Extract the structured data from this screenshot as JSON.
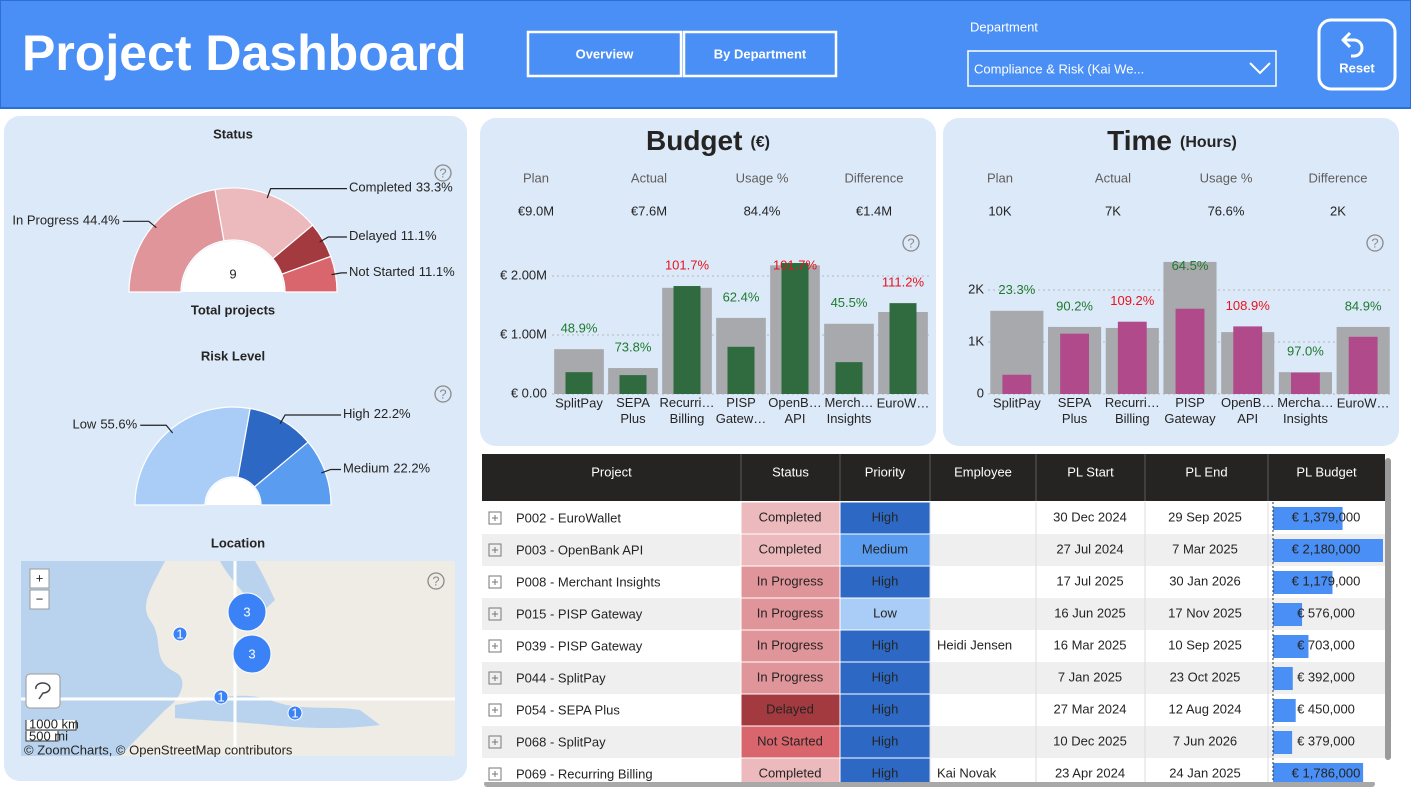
{
  "header": {
    "title": "Project Dashboard",
    "nav": [
      "Overview",
      "By Department"
    ],
    "filter_label": "Department",
    "filter_value": "Compliance & Risk (Kai We...",
    "reset": "Reset"
  },
  "help_icon": "?",
  "chart_data": [
    {
      "type": "donut",
      "title": "Status",
      "categories": [
        "In Progress",
        "Completed",
        "Delayed",
        "Not Started"
      ],
      "values": [
        44.4,
        33.3,
        11.1,
        11.1
      ],
      "value_labels": [
        "44.4%",
        "33.3%",
        "11.1%",
        "11.1%"
      ],
      "colors": [
        "#e0959a",
        "#ecb9bc",
        "#a33a3f",
        "#d9666d"
      ],
      "center_value": 9,
      "center_label": "Total projects"
    },
    {
      "type": "donut",
      "title": "Risk Level",
      "categories": [
        "Low",
        "High",
        "Medium"
      ],
      "values": [
        55.6,
        22.2,
        22.2
      ],
      "value_labels": [
        "55.6%",
        "22.2%",
        "22.2%"
      ],
      "colors": [
        "#a9cdf7",
        "#2d68c4",
        "#5a9cf0"
      ]
    },
    {
      "type": "bar",
      "title": "Budget",
      "subtitle": "(€)",
      "kpis": [
        {
          "label": "Plan",
          "value": "€9.0M"
        },
        {
          "label": "Actual",
          "value": "€7.6M"
        },
        {
          "label": "Usage %",
          "value": "84.4%"
        },
        {
          "label": "Difference",
          "value": "€1.4M"
        }
      ],
      "categories": [
        "SplitPay",
        "SEPA Plus",
        "Recurri… Billing",
        "PISP Gatew…",
        "OpenB… API",
        "Merch… Insights",
        "EuroW…"
      ],
      "series": [
        {
          "color": "#a7a9ac",
          "values": [
            760000,
            440000,
            1800000,
            1290000,
            2180000,
            1190000,
            1390000
          ]
        },
        {
          "color": "#2f6b3e",
          "values": [
            370000,
            320000,
            1830000,
            800000,
            2220000,
            540000,
            1540000
          ]
        }
      ],
      "usage": {
        "values": [
          48.9,
          73.8,
          101.7,
          62.4,
          101.7,
          45.5,
          111.2
        ],
        "value_labels": [
          "48.9%",
          "73.8%",
          "101.7%",
          "62.4%",
          "101.7%",
          "45.5%",
          "111.2%"
        ],
        "colors": [
          "#1e7a2e",
          "#1e7a2e",
          "#e8131b",
          "#1e7a2e",
          "#e8131b",
          "#1e7a2e",
          "#e8131b"
        ]
      },
      "ylim": [
        0,
        2300000
      ],
      "yticks": [
        {
          "value": 0,
          "label": "€ 0.00"
        },
        {
          "value": 1000000,
          "label": "€ 1.00M"
        },
        {
          "value": 2000000,
          "label": "€ 2.00M"
        }
      ],
      "grid": true
    },
    {
      "type": "bar",
      "title": "Time",
      "subtitle": "(Hours)",
      "kpis": [
        {
          "label": "Plan",
          "value": "10K"
        },
        {
          "label": "Actual",
          "value": "7K"
        },
        {
          "label": "Usage %",
          "value": "76.6%"
        },
        {
          "label": "Difference",
          "value": "2K"
        }
      ],
      "categories": [
        "SplitPay",
        "SEPA Plus",
        "Recurri… Billing",
        "PISP Gateway",
        "OpenB… API",
        "Mercha… Insights",
        "EuroW…"
      ],
      "series": [
        {
          "color": "#a7a9ac",
          "values": [
            1.6,
            1.29,
            1.27,
            2.54,
            1.19,
            0.42,
            1.29
          ]
        },
        {
          "color": "#b04a8a",
          "values": [
            0.37,
            1.16,
            1.39,
            1.64,
            1.3,
            0.41,
            1.1
          ]
        }
      ],
      "usage": {
        "values": [
          23.3,
          90.2,
          109.2,
          64.5,
          108.9,
          97.0,
          84.9
        ],
        "value_labels": [
          "23.3%",
          "90.2%",
          "109.2%",
          "64.5%",
          "108.9%",
          "97.0%",
          "84.9%"
        ],
        "colors": [
          "#1e7a2e",
          "#1e7a2e",
          "#e8131b",
          "#1e7a2e",
          "#e8131b",
          "#1e7a2e",
          "#1e7a2e"
        ]
      },
      "ylim": [
        0,
        2.6
      ],
      "yticks": [
        0,
        {
          "value": 1,
          "label": "1K"
        },
        {
          "value": 2,
          "label": "2K"
        }
      ],
      "grid": true
    }
  ],
  "map": {
    "title": "Location",
    "zoom_in": "+",
    "zoom_out": "−",
    "clusters": [
      3,
      3,
      1,
      1,
      1
    ],
    "scale_km": "1000 km",
    "scale_mi": "500 mi",
    "attribution": "© ZoomCharts, © OpenStreetMap contributors"
  },
  "table": {
    "columns": [
      "Project",
      "Status",
      "Priority",
      "Employee",
      "PL Start",
      "PL End",
      "PL Budget"
    ],
    "rows": [
      {
        "project": "P002 - EuroWallet",
        "status": "Completed",
        "priority": "High",
        "employee": null,
        "start": "30 Dec 2024",
        "end": "29 Sep 2025",
        "budget": 1379000,
        "budget_label": "€ 1,379,000"
      },
      {
        "project": "P003 - OpenBank API",
        "status": "Completed",
        "priority": "Medium",
        "employee": null,
        "start": "27 Jul 2024",
        "end": "7 Mar 2025",
        "budget": 2180000,
        "budget_label": "€ 2,180,000"
      },
      {
        "project": "P008 - Merchant Insights",
        "status": "In Progress",
        "priority": "High",
        "employee": null,
        "start": "17 Jul 2025",
        "end": "30 Jan 2026",
        "budget": 1179000,
        "budget_label": "€ 1,179,000"
      },
      {
        "project": "P015 - PISP Gateway",
        "status": "In Progress",
        "priority": "Low",
        "employee": null,
        "start": "16 Jun 2025",
        "end": "17 Nov 2025",
        "budget": 576000,
        "budget_label": "€ 576,000"
      },
      {
        "project": "P039 - PISP Gateway",
        "status": "In Progress",
        "priority": "High",
        "employee": "Heidi Jensen",
        "start": "16 Mar 2025",
        "end": "10 Sep 2025",
        "budget": 703000,
        "budget_label": "€ 703,000"
      },
      {
        "project": "P044 - SplitPay",
        "status": "In Progress",
        "priority": "High",
        "employee": null,
        "start": "7 Jan 2025",
        "end": "23 Oct 2025",
        "budget": 392000,
        "budget_label": "€ 392,000"
      },
      {
        "project": "P054 - SEPA Plus",
        "status": "Delayed",
        "priority": "High",
        "employee": null,
        "start": "27 Mar 2024",
        "end": "12 Aug 2024",
        "budget": 450000,
        "budget_label": "€ 450,000"
      },
      {
        "project": "P068 - SplitPay",
        "status": "Not Started",
        "priority": "High",
        "employee": null,
        "start": "10 Dec 2025",
        "end": "7 Jun 2026",
        "budget": 379000,
        "budget_label": "€ 379,000"
      },
      {
        "project": "P069 - Recurring Billing",
        "status": "Completed",
        "priority": "High",
        "employee": "Kai Novak",
        "start": "23 Apr 2024",
        "end": "24 Jan 2025",
        "budget": 1786000,
        "budget_label": "€ 1,786,000"
      }
    ]
  }
}
